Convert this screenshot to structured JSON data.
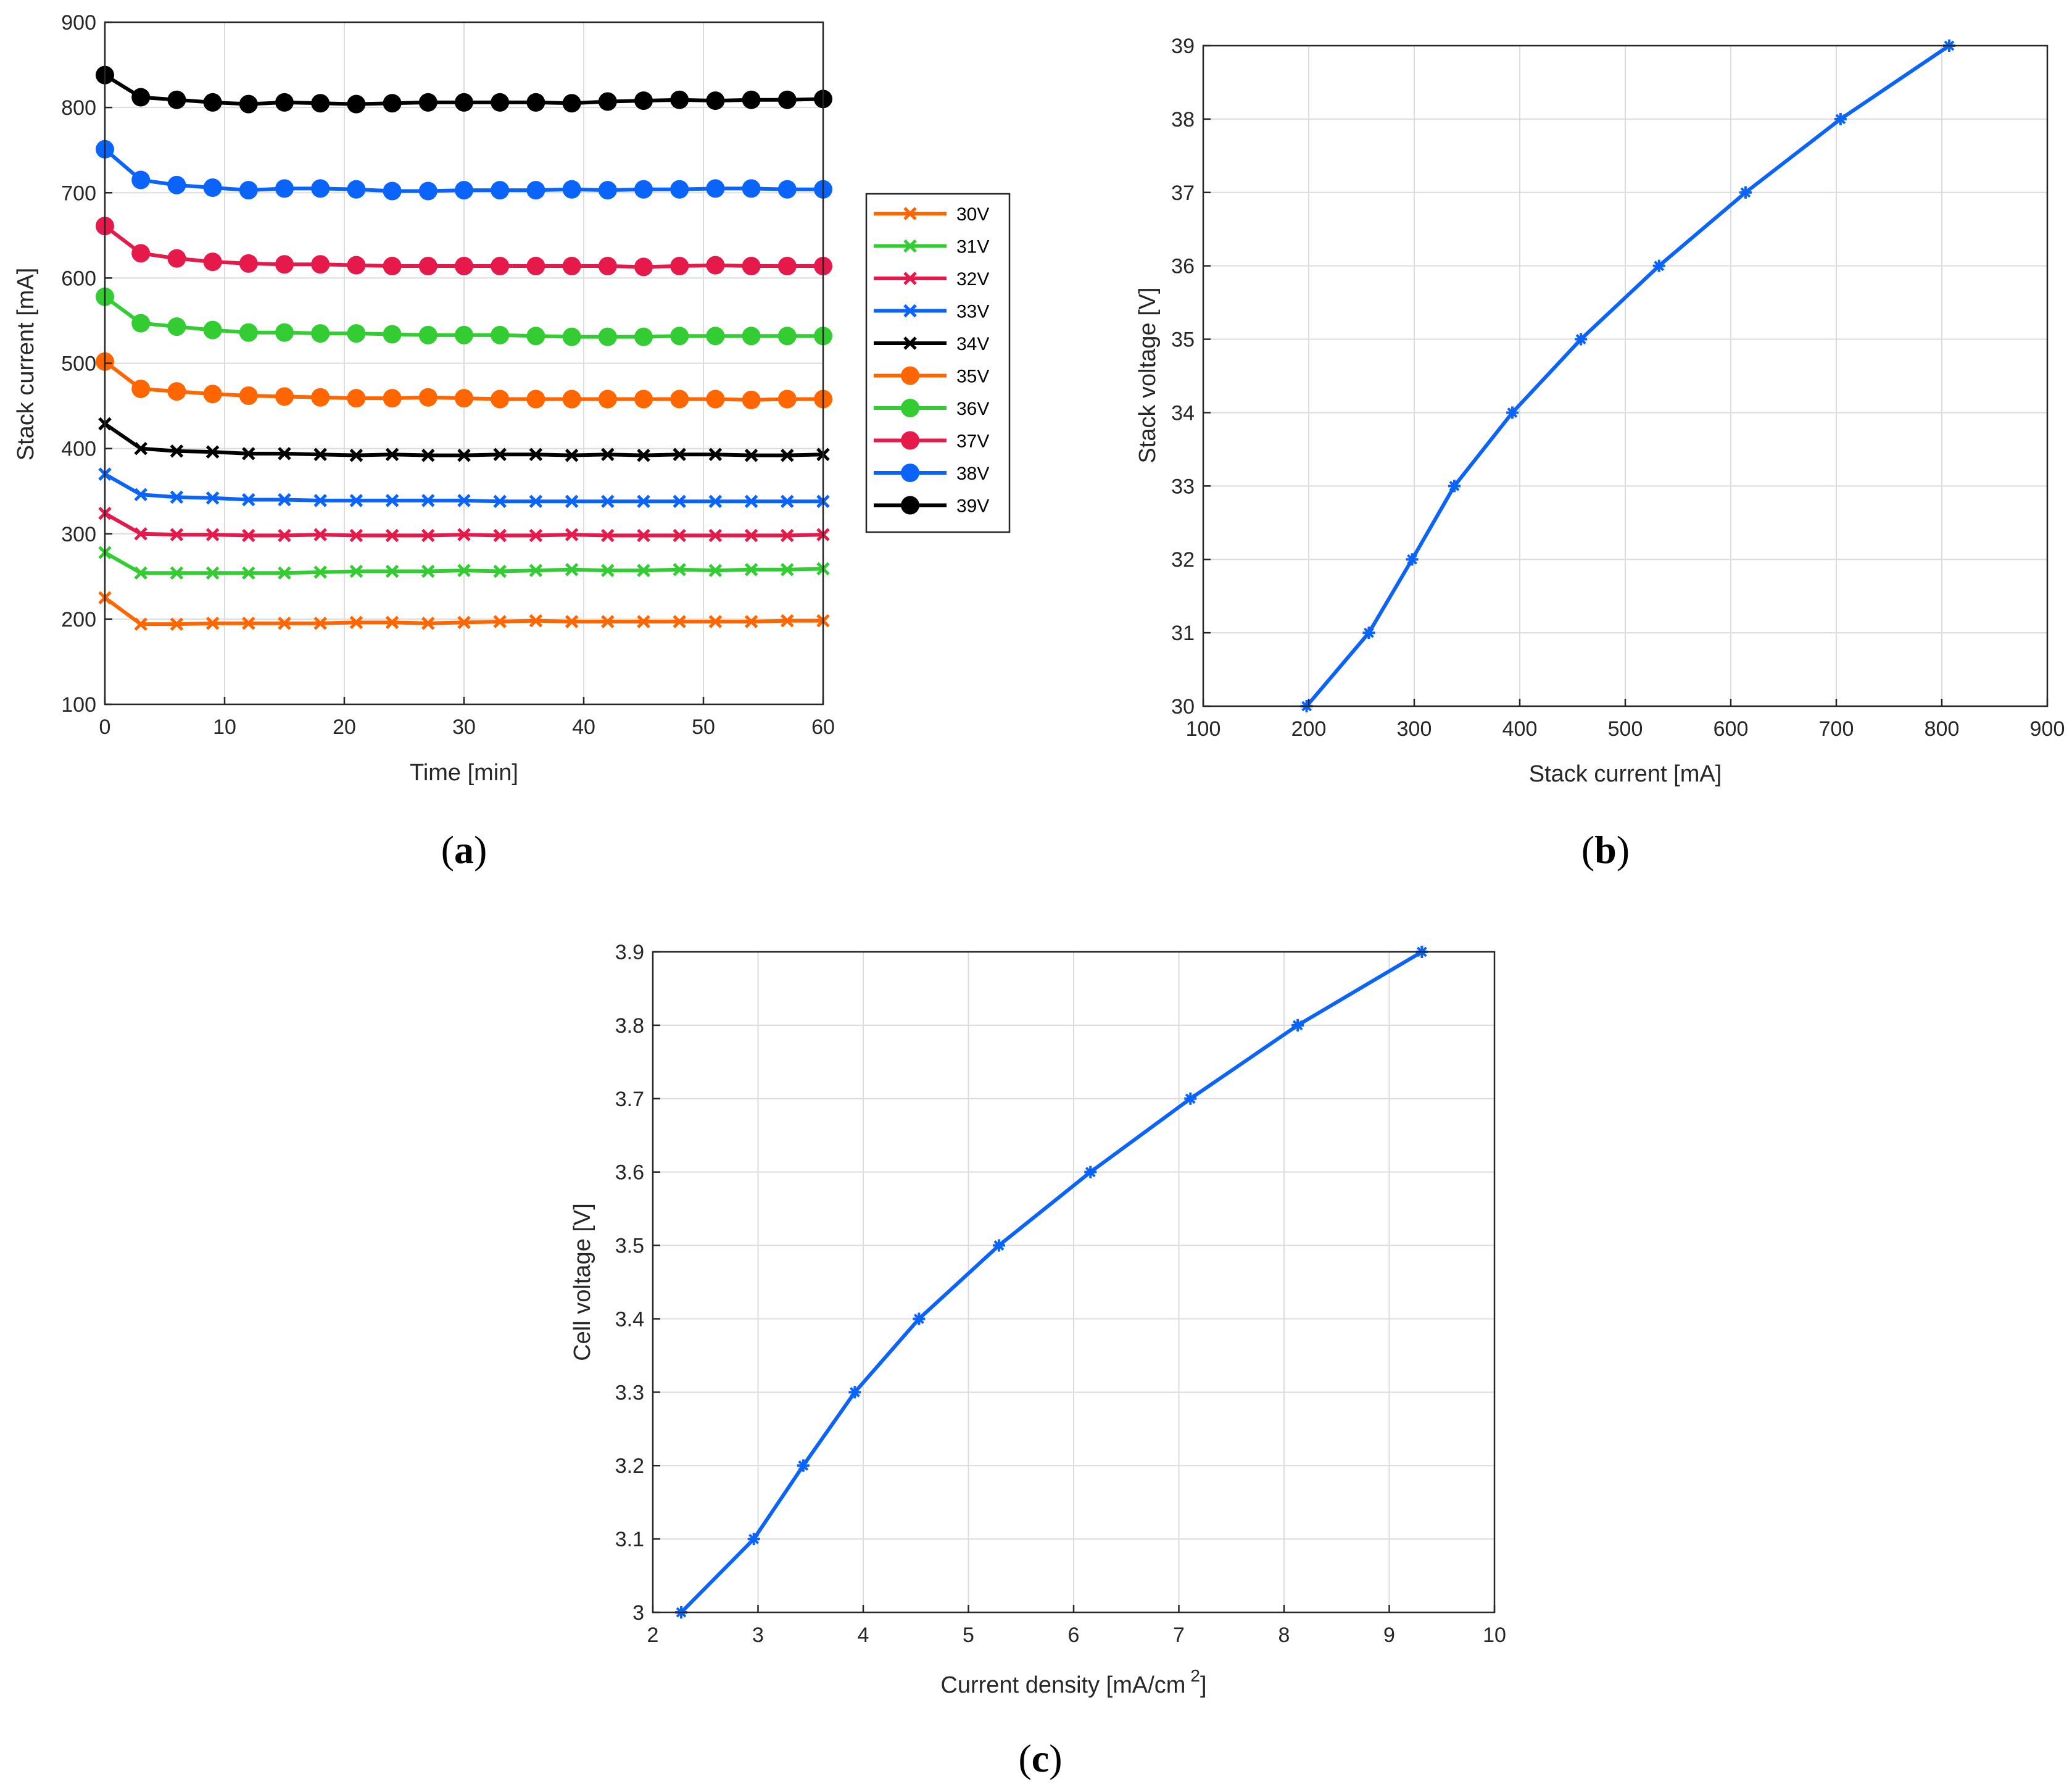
{
  "colors": {
    "orange": "#FF6600",
    "green": "#33CC33",
    "crimson": "#E6194B",
    "blue": "#0A64FA",
    "black": "#000000",
    "line_b": "#0A64FA",
    "line_c": "#0A64FA"
  },
  "chart_data": [
    {
      "id": "a",
      "type": "line",
      "caption_letter": "a",
      "xlabel": "Time [min]",
      "ylabel": "Stack current [mA]",
      "xlim": [
        0,
        60
      ],
      "ylim": [
        100,
        900
      ],
      "xticks": [
        "0",
        "10",
        "20",
        "30",
        "40",
        "50",
        "60"
      ],
      "yticks": [
        "100",
        "200",
        "300",
        "400",
        "500",
        "600",
        "700",
        "800",
        "900"
      ],
      "x": [
        0,
        3,
        6,
        9,
        12,
        15,
        18,
        21,
        24,
        27,
        30,
        33,
        36,
        39,
        42,
        45,
        48,
        51,
        54,
        57,
        60
      ],
      "legend_position": "outside-right",
      "series": [
        {
          "name": "30V",
          "color": "orange",
          "marker": "x",
          "values": [
            225,
            194,
            194,
            195,
            195,
            195,
            195,
            196,
            196,
            195,
            196,
            197,
            198,
            197,
            197,
            197,
            197,
            197,
            197,
            198,
            198
          ]
        },
        {
          "name": "31V",
          "color": "green",
          "marker": "x",
          "values": [
            278,
            254,
            254,
            254,
            254,
            254,
            255,
            256,
            256,
            256,
            257,
            256,
            257,
            258,
            257,
            257,
            258,
            257,
            258,
            258,
            259
          ]
        },
        {
          "name": "32V",
          "color": "crimson",
          "marker": "x",
          "values": [
            324,
            300,
            299,
            299,
            298,
            298,
            299,
            298,
            298,
            298,
            299,
            298,
            298,
            299,
            298,
            298,
            298,
            298,
            298,
            298,
            299
          ]
        },
        {
          "name": "33V",
          "color": "blue",
          "marker": "x",
          "values": [
            370,
            346,
            343,
            342,
            340,
            340,
            339,
            339,
            339,
            339,
            339,
            338,
            338,
            338,
            338,
            338,
            338,
            338,
            338,
            338,
            338
          ]
        },
        {
          "name": "34V",
          "color": "black",
          "marker": "x",
          "values": [
            429,
            400,
            397,
            396,
            394,
            394,
            393,
            392,
            393,
            392,
            392,
            393,
            393,
            392,
            393,
            392,
            393,
            393,
            392,
            392,
            393
          ]
        },
        {
          "name": "35V",
          "color": "orange",
          "marker": "o",
          "values": [
            502,
            470,
            467,
            464,
            462,
            461,
            460,
            459,
            459,
            460,
            459,
            458,
            458,
            458,
            458,
            458,
            458,
            458,
            457,
            458,
            458
          ]
        },
        {
          "name": "36V",
          "color": "green",
          "marker": "o",
          "values": [
            578,
            547,
            543,
            539,
            536,
            536,
            535,
            535,
            534,
            533,
            533,
            533,
            532,
            531,
            531,
            531,
            532,
            532,
            532,
            532,
            532
          ]
        },
        {
          "name": "37V",
          "color": "crimson",
          "marker": "o",
          "values": [
            661,
            629,
            623,
            619,
            617,
            616,
            616,
            615,
            614,
            614,
            614,
            614,
            614,
            614,
            614,
            613,
            614,
            615,
            614,
            614,
            614
          ]
        },
        {
          "name": "38V",
          "color": "blue",
          "marker": "o",
          "values": [
            751,
            715,
            709,
            706,
            703,
            705,
            705,
            704,
            702,
            702,
            703,
            703,
            703,
            704,
            703,
            704,
            704,
            705,
            705,
            704,
            704
          ]
        },
        {
          "name": "39V",
          "color": "black",
          "marker": "o",
          "values": [
            838,
            812,
            809,
            806,
            804,
            806,
            805,
            804,
            805,
            806,
            806,
            806,
            806,
            805,
            807,
            808,
            809,
            808,
            809,
            809,
            810
          ]
        }
      ]
    },
    {
      "id": "b",
      "type": "line",
      "caption_letter": "b",
      "xlabel": "Stack current [mA]",
      "ylabel": "Stack voltage [V]",
      "xlim": [
        100,
        900
      ],
      "ylim": [
        30,
        39
      ],
      "xticks": [
        "100",
        "200",
        "300",
        "400",
        "500",
        "600",
        "700",
        "800",
        "900"
      ],
      "yticks": [
        "30",
        "31",
        "32",
        "33",
        "34",
        "35",
        "36",
        "37",
        "38",
        "39"
      ],
      "x": [
        198,
        257,
        298,
        338,
        393,
        458,
        532,
        614,
        704,
        807
      ],
      "y": [
        30,
        31,
        32,
        33,
        34,
        35,
        36,
        37,
        38,
        39
      ]
    },
    {
      "id": "c",
      "type": "line",
      "caption_letter": "c",
      "xlabel": "Current density [mA/cm",
      "xlabel_sup": "2",
      "xlabel_close": "]",
      "ylabel": "Cell voltage [V]",
      "xlim": [
        2,
        10
      ],
      "ylim": [
        3,
        3.9
      ],
      "xticks": [
        "2",
        "3",
        "4",
        "5",
        "6",
        "7",
        "8",
        "9",
        "10"
      ],
      "yticks": [
        "3",
        "3.1",
        "3.2",
        "3.3",
        "3.4",
        "3.5",
        "3.6",
        "3.7",
        "3.8",
        "3.9"
      ],
      "x": [
        2.27,
        2.96,
        3.43,
        3.92,
        4.53,
        5.29,
        6.16,
        7.11,
        8.13,
        9.31
      ],
      "y": [
        3.0,
        3.1,
        3.2,
        3.3,
        3.4,
        3.5,
        3.6,
        3.7,
        3.8,
        3.9
      ]
    }
  ]
}
